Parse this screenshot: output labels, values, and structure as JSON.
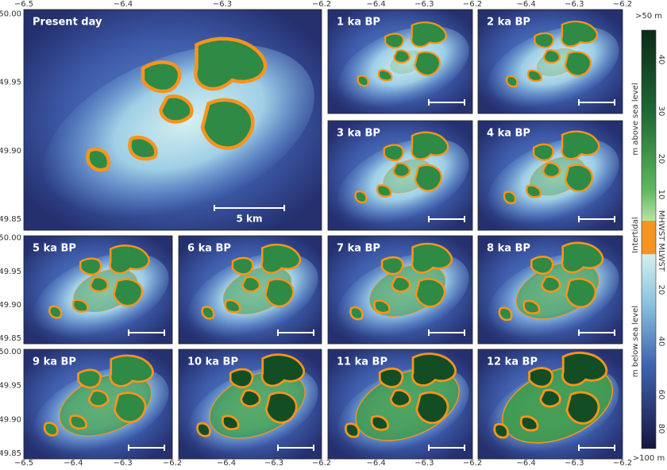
{
  "x_axis": {
    "ticks": [
      "−6.5",
      "−6.4",
      "−6.3",
      "−6.2"
    ]
  },
  "y_axis": {
    "ticks": [
      "50.00",
      "49.95",
      "49.90",
      "49.85"
    ]
  },
  "panels": [
    {
      "label": "Present day"
    },
    {
      "label": "1 ka BP"
    },
    {
      "label": "2 ka BP"
    },
    {
      "label": "3 ka BP"
    },
    {
      "label": "4 ka BP"
    },
    {
      "label": "5 ka BP"
    },
    {
      "label": "6 ka BP"
    },
    {
      "label": "7 ka BP"
    },
    {
      "label": "8 ka BP"
    },
    {
      "label": "9 ka BP"
    },
    {
      "label": "10 ka BP"
    },
    {
      "label": "11 ka BP"
    },
    {
      "label": "12 ka BP"
    }
  ],
  "scale_bar": "5 km",
  "colorbar": {
    "top": ">50 m",
    "bottom": ">100 m",
    "above_ticks": [
      "40",
      "30",
      "20",
      "10"
    ],
    "below_ticks": [
      "20",
      "40",
      "60",
      "80"
    ],
    "mhwst": "MHWST",
    "mlwst": "MLWST",
    "intertidal": "Intertidal",
    "above_label": "m above sea level",
    "below_label": "m below sea level"
  }
}
